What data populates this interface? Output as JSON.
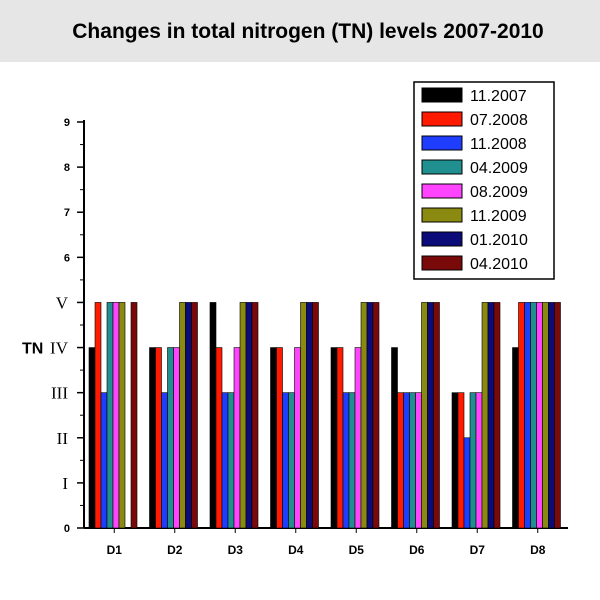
{
  "chart_data": {
    "type": "bar",
    "title": "Changes in total nitrogen (TN) levels 2007-2010",
    "xlabel": "",
    "ylabel": "TN",
    "ylim": [
      0,
      9
    ],
    "yticks_numeric": [
      "0",
      "1",
      "2",
      "3",
      "4",
      "5",
      "6",
      "7",
      "8",
      "9"
    ],
    "yticks_roman": [
      {
        "value": 1,
        "label": "I"
      },
      {
        "value": 2,
        "label": "II"
      },
      {
        "value": 3,
        "label": "III"
      },
      {
        "value": 4,
        "label": "IV"
      },
      {
        "value": 5,
        "label": "V"
      }
    ],
    "categories": [
      "D1",
      "D2",
      "D3",
      "D4",
      "D5",
      "D6",
      "D7",
      "D8"
    ],
    "legend_position": "top-right",
    "series": [
      {
        "name": "11.2007",
        "color": "#000000",
        "values": [
          4,
          4,
          5,
          4,
          4,
          4,
          3,
          4
        ]
      },
      {
        "name": "07.2008",
        "color": "#ff1a00",
        "values": [
          5,
          4,
          4,
          4,
          4,
          3,
          3,
          5
        ]
      },
      {
        "name": "11.2008",
        "color": "#1f3dff",
        "values": [
          3,
          3,
          3,
          3,
          3,
          3,
          2,
          5
        ]
      },
      {
        "name": "04.2009",
        "color": "#1f8f8f",
        "values": [
          5,
          4,
          3,
          3,
          3,
          3,
          3,
          5
        ]
      },
      {
        "name": "08.2009",
        "color": "#ff44ff",
        "values": [
          5,
          4,
          4,
          4,
          4,
          3,
          3,
          5
        ]
      },
      {
        "name": "11.2009",
        "color": "#8a8a10",
        "values": [
          5,
          5,
          5,
          5,
          5,
          5,
          5,
          5
        ]
      },
      {
        "name": "01.2010",
        "color": "#0b0b7a",
        "values": [
          0,
          5,
          5,
          5,
          5,
          5,
          5,
          5
        ]
      },
      {
        "name": "04.2010",
        "color": "#7a0a0a",
        "values": [
          5,
          5,
          5,
          5,
          5,
          5,
          5,
          5
        ]
      }
    ]
  }
}
